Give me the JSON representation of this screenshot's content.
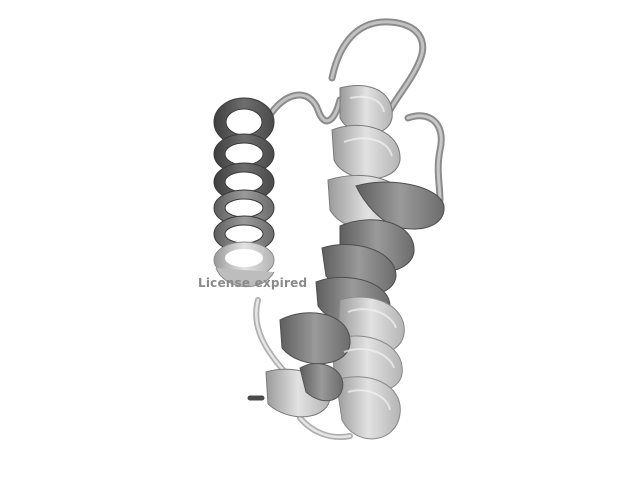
{
  "viewer": {
    "watermark_text": "License expired",
    "background_color": "#ffffff"
  },
  "structure": {
    "representation": "cartoon",
    "elements": [
      "helix-left",
      "helix-right-upper",
      "helix-right-lower",
      "loop-top",
      "loop-bottom"
    ],
    "colors": {
      "helix_dark": "#5a5a5a",
      "helix_mid": "#8c8c8c",
      "helix_light": "#c8c8c8",
      "loop": "#a8a8a8"
    }
  }
}
